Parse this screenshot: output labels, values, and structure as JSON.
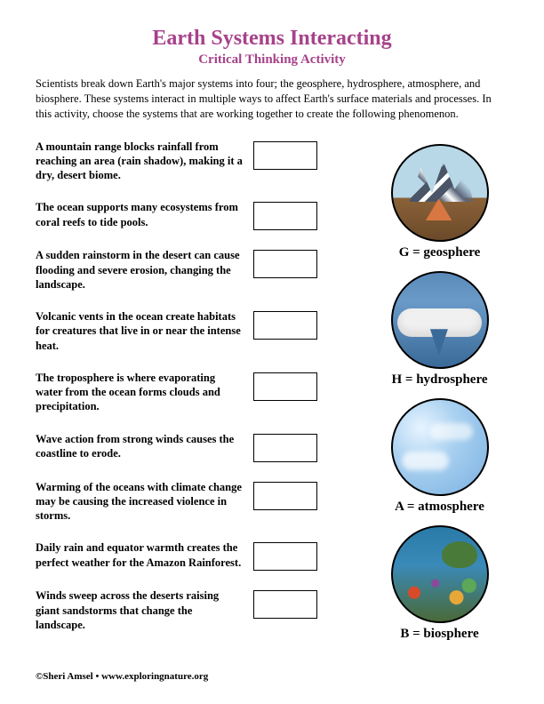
{
  "title": "Earth Systems Interacting",
  "subtitle": "Critical Thinking Activity",
  "intro": "Scientists break down Earth's major systems into four; the geosphere, hydrosphere, atmosphere, and biosphere. These systems interact in multiple ways to affect Earth's surface materials and processes. In this activity, choose the systems that are working together to create the following phenomenon.",
  "questions": [
    "A mountain range blocks rainfall from reaching an area (rain shadow), making it a dry, desert biome.",
    "The ocean supports many ecosystems from coral reefs to tide pools.",
    "A sudden rainstorm in the desert can cause flooding and severe erosion, changing the landscape.",
    "Volcanic vents in the ocean create habitats for creatures that live in or near the intense heat.",
    "The troposphere is where evaporating water from the ocean forms clouds and precipitation.",
    "Wave action from strong winds causes the coastline to erode.",
    "Warming of the oceans with climate change may be causing the increased violence in storms.",
    "Daily rain and equator warmth creates the perfect weather for the Amazon Rainforest.",
    "Winds sweep across the deserts raising giant sandstorms that change the landscape."
  ],
  "spheres": [
    {
      "label": "G = geosphere",
      "class": "geo"
    },
    {
      "label": "H = hydrosphere",
      "class": "hydro"
    },
    {
      "label": "A = atmosphere",
      "class": "atmo"
    },
    {
      "label": "B = biosphere",
      "class": "bio"
    }
  ],
  "footer": "©Sheri Amsel • www.exploringnature.org",
  "colors": {
    "accent": "#a6428a",
    "text": "#000000",
    "background": "#ffffff"
  }
}
